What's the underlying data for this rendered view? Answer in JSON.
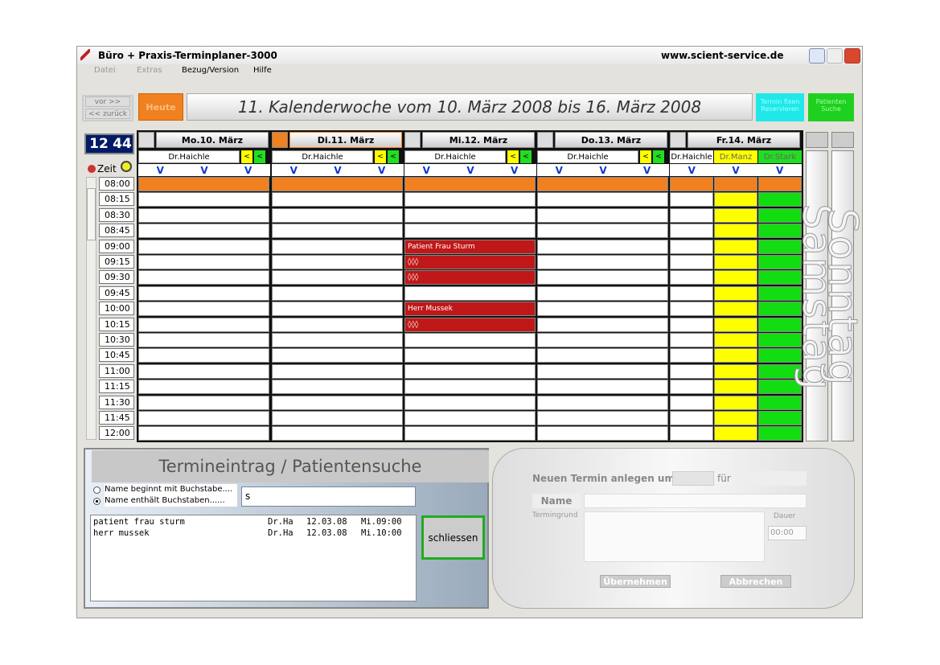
{
  "window": {
    "title": "Büro + Praxis-Terminplaner-3000",
    "url": "www.scient-service.de"
  },
  "menu": [
    "Datei",
    "Extras",
    "Bezug/Version",
    "Hilfe"
  ],
  "toolbar": {
    "forward": "vor >>",
    "back": "<< zurück",
    "today": "Heute",
    "week_title": "11.  Kalenderwoche  vom  10. März 2008  bis   16. März 2008",
    "reserve": "Termin fixen Reservieren",
    "patient_search": "Patienten Suche"
  },
  "clock": {
    "hours": "12",
    "minutes": "44",
    "label": "Zeit"
  },
  "times": [
    "08:00",
    "08:15",
    "08:30",
    "08:45",
    "09:00",
    "09:15",
    "09:30",
    "09:45",
    "10:00",
    "10:15",
    "10:30",
    "10:45",
    "11:00",
    "11:15",
    "11:30",
    "11:45",
    "12:00"
  ],
  "doctor_button": "<",
  "column_marker": "V",
  "days": [
    {
      "label": "Mo.10. März",
      "doctors": [
        "Dr.Haichle"
      ],
      "entries": {}
    },
    {
      "label": "Di.11. März",
      "doctors": [
        "Dr.Haichle"
      ],
      "entries": {}
    },
    {
      "label": "Mi.12. März",
      "doctors": [
        "Dr.Haichle"
      ],
      "entries": {
        "09:00": "Patient Frau Sturm",
        "09:15": "◊◊◊",
        "09:30": "◊◊◊",
        "10:00": "Herr Mussek",
        "10:15": "◊◊◊"
      }
    },
    {
      "label": "Do.13. März",
      "doctors": [
        "Dr.Haichle"
      ],
      "entries": {}
    },
    {
      "label": "Fr.14. März",
      "doctors": [
        "Dr.Haichle",
        "Dr.Manz",
        "Dr.Stark"
      ],
      "entries": {}
    }
  ],
  "weekend": [
    "Samstag",
    "Sonntag"
  ],
  "search": {
    "title": "Termineintrag / Patientensuche",
    "options": [
      "Name beginnt mit Buchstabe....",
      "Name enthält Buchstaben......"
    ],
    "query": "s",
    "results": [
      [
        "patient frau sturm",
        "Dr.Ha",
        "12.03.08",
        "Mi.09:00"
      ],
      [
        "herr mussek",
        "Dr.Ha",
        "12.03.08",
        "Mi.10:00"
      ]
    ],
    "close": "schliessen"
  },
  "new_appointment": {
    "heading": "Neuen Termin anlegen um:",
    "for": "für",
    "name": "Name",
    "reason": "Termingrund",
    "duration": "Dauer",
    "duration_value": "00:00",
    "accept": "Übernehmen",
    "cancel": "Abbrechen"
  }
}
